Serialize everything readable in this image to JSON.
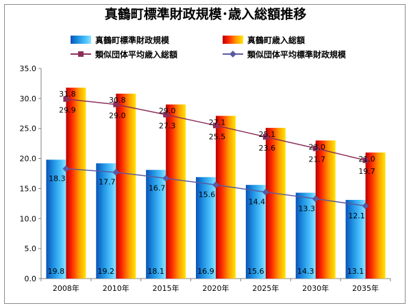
{
  "chart_data": {
    "type": "bar",
    "title": "真鶴町標準財政規模･歳入総額推移",
    "categories": [
      "2008年",
      "2010年",
      "2015年",
      "2020年",
      "2025年",
      "2030年",
      "2035年"
    ],
    "ylim": [
      0,
      35
    ],
    "yticks": [
      "0.0",
      "5.0",
      "10.0",
      "15.0",
      "20.0",
      "25.0",
      "30.0",
      "35.0"
    ],
    "grid": false,
    "legend_position": "top",
    "series": [
      {
        "name": "真鶴町標準財政規模",
        "kind": "bar",
        "color": "#1e90e0",
        "values": [
          19.8,
          19.2,
          18.1,
          16.9,
          15.6,
          14.3,
          13.1
        ]
      },
      {
        "name": "真鶴町歳入総額",
        "kind": "bar",
        "color": "#ff6a00",
        "values": [
          31.8,
          30.8,
          29.0,
          27.1,
          25.1,
          23.0,
          21.0
        ]
      },
      {
        "name": "類似団体平均歳入総額",
        "kind": "line",
        "marker": "square",
        "color": "#8b2f5a",
        "values": [
          29.9,
          29.0,
          27.3,
          25.5,
          23.6,
          21.7,
          19.7
        ]
      },
      {
        "name": "類似団体平均標準財政規模",
        "kind": "line",
        "marker": "diamond",
        "color": "#5a5aa0",
        "values": [
          18.3,
          17.7,
          16.7,
          15.6,
          14.4,
          13.3,
          12.1
        ]
      }
    ]
  }
}
